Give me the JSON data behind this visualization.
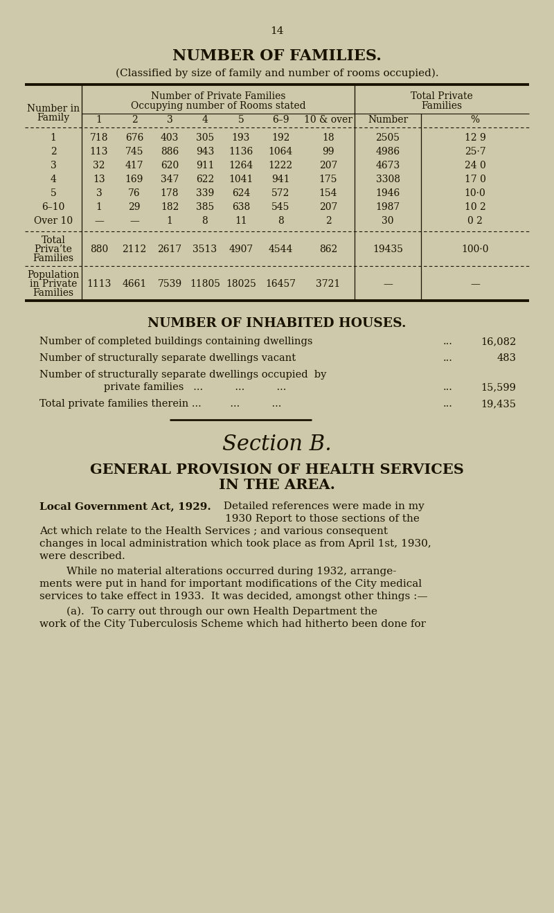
{
  "bg_color": "#cec9aa",
  "page_number": "14",
  "title": "NUMBER OF FAMILIES.",
  "subtitle": "(Classified by size of family and number of rooms occupied).",
  "col_header_mid": [
    "Number of Private Families",
    "Occupying number of Rooms stated"
  ],
  "col_header_right": [
    "Total Private",
    "Families"
  ],
  "col_header_left": [
    "Number in",
    "Family"
  ],
  "sub_headers": [
    "1",
    "2",
    "3",
    "4",
    "5",
    "6–9",
    "10 & over",
    "Number",
    "%"
  ],
  "rows": [
    [
      "1",
      "718",
      "676",
      "403",
      "305",
      "193",
      "192",
      "18",
      "2505",
      "12 9"
    ],
    [
      "2",
      "113",
      "745",
      "886",
      "943",
      "1136",
      "1064",
      "99",
      "4986",
      "25·7"
    ],
    [
      "3",
      "32",
      "417",
      "620",
      "911",
      "1264",
      "1222",
      "207",
      "4673",
      "24 0"
    ],
    [
      "4",
      "13",
      "169",
      "347",
      "622",
      "1041",
      "941",
      "175",
      "3308",
      "17 0"
    ],
    [
      "5",
      "3",
      "76",
      "178",
      "339",
      "624",
      "572",
      "154",
      "1946",
      "10·0"
    ],
    [
      "6–10",
      "1",
      "29",
      "182",
      "385",
      "638",
      "545",
      "207",
      "1987",
      "10 2"
    ],
    [
      "Over 10",
      "—",
      "—",
      "1",
      "8",
      "11",
      "8",
      "2",
      "30",
      "0 2"
    ]
  ],
  "total_row": [
    "Total",
    "Priva’te",
    "Families",
    "880",
    "2112",
    "2617",
    "3513",
    "4907",
    "4544",
    "862",
    "19435",
    "100·0"
  ],
  "pop_row": [
    "Population",
    "in Private",
    "Families",
    "1113",
    "4661",
    "7539",
    "11805",
    "18025",
    "16457",
    "3721",
    "—",
    "—"
  ],
  "inhabited_title": "NUMBER OF INHABITED HOUSES.",
  "inh_line1_desc": "Number of completed buildings containing dwellings",
  "inh_line1_val": "16,082",
  "inh_line2_desc": "Number of structurally separate dwellings vacant",
  "inh_line2_val": "483",
  "inh_line3a": "Number of structurally separate dwellings occupied  by",
  "inh_line3b": "private families   ...          ...          ...",
  "inh_line3_val": "15,599",
  "inh_line4_desc": "Total private families therein ...         ...          ...",
  "inh_line4_val": "19,435",
  "dots": "...",
  "section_title": "Section B.",
  "heading1": "GENERAL PROVISION OF HEALTH SERVICES",
  "heading2": "IN THE AREA.",
  "bold_lead": "Local Government Act, 1929.",
  "para1_line1": "  Detailed references were made in my",
  "para1_line2": "1930 Report to those sections of the",
  "para1_line3": "Act which relate to the Health Services ; and various consequent",
  "para1_line4": "changes in local administration which took place as from April 1st, 1930,",
  "para1_line5": "were described.",
  "para2_line1": "        While no material alterations occurred during 1932, arrange-",
  "para2_line2": "ments were put in hand for important modifications of the City medical",
  "para2_line3": "services to take effect in 1933.  It was decided, amongst other things :—",
  "para3_line1": "        (a).  To carry out through our own Health Department the",
  "para3_line2": "work of the City Tuberculosis Scheme which had hitherto been done for"
}
